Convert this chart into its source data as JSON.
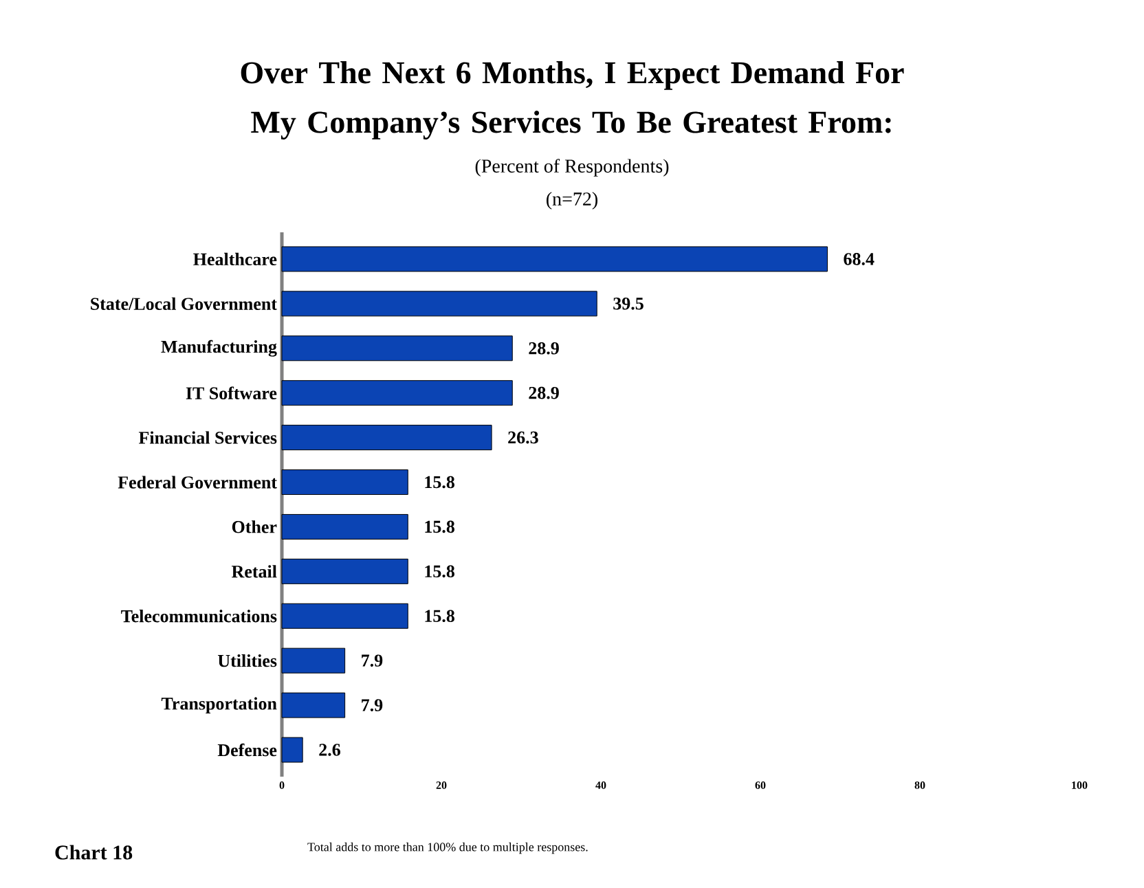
{
  "chart_data": {
    "type": "bar",
    "orientation": "horizontal",
    "title": "Over The Next 6 Months, I Expect Demand For My Company’s Services To Be Greatest From:",
    "subtitle": "(Percent of Respondents)",
    "annotations": [
      "(n=72)",
      "Chart 18",
      "Total adds to more than 100% due to multiple responses."
    ],
    "categories": [
      "Healthcare",
      "State/Local Government",
      "Manufacturing",
      "IT Software",
      "Financial Services",
      "Federal Government",
      "Other",
      "Retail",
      "Telecommunications",
      "Utilities",
      "Transportation",
      "Defense"
    ],
    "values": [
      68.4,
      39.5,
      28.9,
      28.9,
      26.3,
      15.8,
      15.8,
      15.8,
      15.8,
      7.9,
      7.9,
      2.6
    ],
    "color": "#0b44b4",
    "xlim": [
      0,
      100
    ],
    "xticks": [
      0,
      20,
      40,
      60,
      80,
      100
    ],
    "data_labels": true,
    "grid": false
  }
}
